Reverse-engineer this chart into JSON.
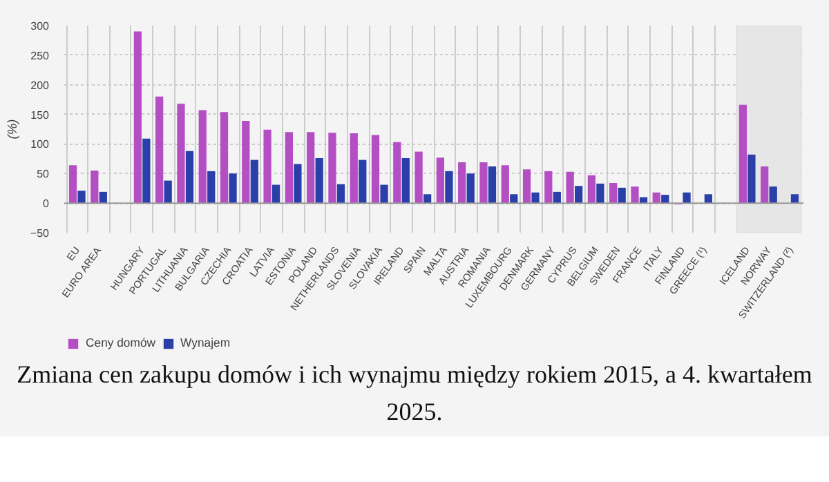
{
  "chart_data": {
    "type": "bar",
    "title": "Zmiana cen zakupu domów i ich wynajmu między rokiem 2015, a 4. kwartałem 2025.",
    "ylabel": "(%)",
    "categories": [
      "EU",
      "EURO AREA",
      null,
      "HUNGARY",
      "PORTUGAL",
      "LITHUANIA",
      "BULGARIA",
      "CZECHIA",
      "CROATIA",
      "LATVIA",
      "ESTONIA",
      "POLAND",
      "NETHERLANDS",
      "SLOVENIA",
      "SLOVAKIA",
      "IRELAND",
      "SPAIN",
      "MALTA",
      "AUSTRIA",
      "ROMANIA",
      "LUXEMBOURG",
      "DENMARK",
      "GERMANY",
      "CYPRUS",
      "BELGIUM",
      "SWEDEN",
      "FRANCE",
      "ITALY",
      "FINLAND",
      "GREECE (¹)",
      null,
      "ICELAND",
      "NORWAY",
      "SWITZERLAND (²)"
    ],
    "series": [
      {
        "name": "Ceny domów",
        "color": "#b44fc3",
        "values": [
          64,
          55,
          null,
          290,
          180,
          168,
          157,
          154,
          139,
          124,
          120,
          120,
          119,
          118,
          115,
          103,
          87,
          77,
          69,
          69,
          64,
          57,
          54,
          53,
          47,
          34,
          28,
          18,
          -2,
          null,
          null,
          166,
          62,
          null
        ]
      },
      {
        "name": "Wynajem",
        "color": "#2a3fa8",
        "values": [
          21,
          19,
          null,
          109,
          38,
          88,
          54,
          50,
          73,
          31,
          66,
          76,
          32,
          73,
          31,
          76,
          15,
          54,
          50,
          62,
          15,
          18,
          19,
          29,
          33,
          26,
          10,
          14,
          18,
          15,
          null,
          82,
          28,
          15
        ]
      }
    ],
    "ylim": [
      -50,
      300
    ],
    "yticks": [
      -50,
      0,
      50,
      100,
      150,
      200,
      250,
      300
    ],
    "grid": true,
    "legend": "bottom left",
    "bands": [
      {
        "axis": "x",
        "from": "ICELAND",
        "to": "SWITZERLAND (²)",
        "color": "#e6e6e6"
      }
    ]
  }
}
